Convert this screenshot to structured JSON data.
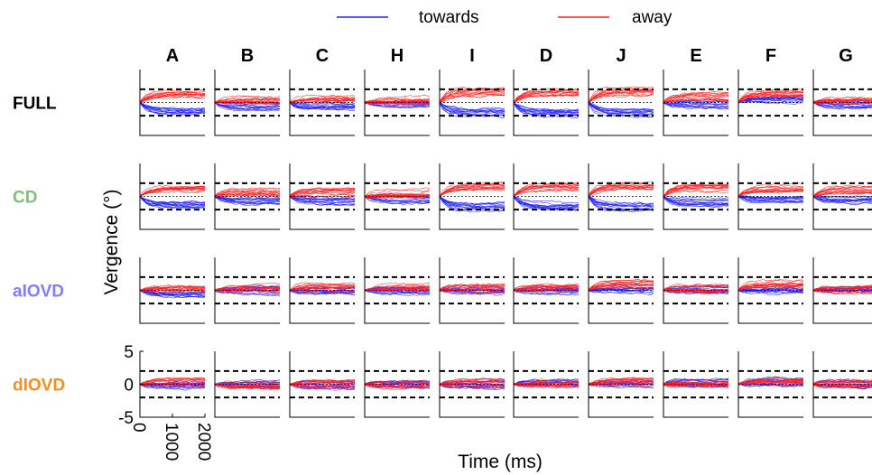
{
  "chart_data": {
    "type": "line",
    "xlabel": "Time (ms)",
    "ylabel": "Vergence (°)",
    "xlim": [
      0,
      2000
    ],
    "ylim": [
      -5,
      5
    ],
    "xticks": [
      "0",
      "1000",
      "2000"
    ],
    "yticks": [
      "5",
      "0",
      "-5"
    ],
    "columns": [
      "A",
      "B",
      "C",
      "H",
      "I",
      "D",
      "J",
      "E",
      "F",
      "G"
    ],
    "rows": [
      {
        "label": "FULL",
        "color": "#000000",
        "ref_level": 2
      },
      {
        "label": "CD",
        "color": "#7cc17a",
        "ref_level": 2
      },
      {
        "label": "aIOVD",
        "color": "#7f7fff",
        "ref_level": 2
      },
      {
        "label": "dIOVD",
        "color": "#ff8c1a",
        "ref_level": 2
      }
    ],
    "legend": {
      "position": "top",
      "entries": [
        {
          "name": "towards",
          "color": "#1f1fff"
        },
        {
          "name": "away",
          "color": "#ff1f1f"
        }
      ]
    },
    "series": [
      {
        "name": "towards",
        "color": "#1f1fff",
        "final_vergence": [
          [
            -1.3,
            -0.6,
            -0.6,
            -0.3,
            -1.5,
            -1.6,
            -1.6,
            -0.2,
            0.5,
            -0.3
          ],
          [
            -1.4,
            -0.8,
            -0.7,
            -0.5,
            -1.6,
            -1.5,
            -1.6,
            -0.9,
            -0.7,
            -0.5
          ],
          [
            -0.4,
            -0.1,
            -0.1,
            -0.1,
            0.0,
            0.0,
            0.1,
            0.0,
            0.1,
            -0.1
          ],
          [
            -0.3,
            -0.1,
            0.0,
            0.0,
            0.0,
            0.1,
            0.2,
            0.2,
            0.4,
            0.0
          ]
        ]
      },
      {
        "name": "away",
        "color": "#ff1f1f",
        "final_vergence": [
          [
            1.2,
            0.3,
            0.6,
            0.3,
            1.6,
            1.6,
            1.7,
            0.8,
            1.4,
            0.4
          ],
          [
            1.4,
            0.6,
            0.6,
            0.5,
            1.5,
            1.5,
            1.6,
            1.3,
            1.3,
            1.0
          ],
          [
            0.2,
            0.4,
            0.4,
            0.5,
            0.3,
            0.4,
            0.9,
            0.3,
            0.8,
            0.1
          ],
          [
            0.3,
            -0.1,
            0.0,
            -0.1,
            0.2,
            0.1,
            0.5,
            0.1,
            0.6,
            0.1
          ]
        ]
      }
    ]
  }
}
